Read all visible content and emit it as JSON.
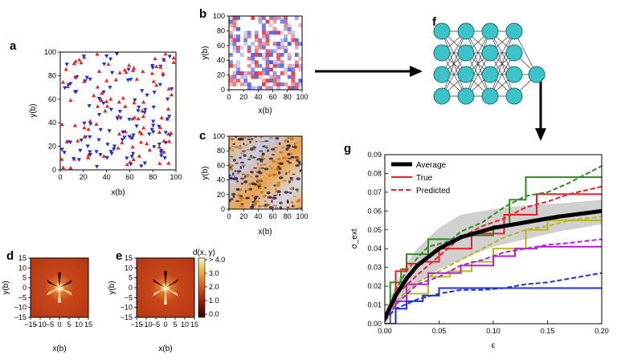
{
  "panels": {
    "a": {
      "label": "a",
      "xlabel": "x(b)",
      "ylabel": "y(b)",
      "xticks": [
        "0",
        "20",
        "40",
        "60",
        "80",
        "100"
      ],
      "yticks": [
        "0",
        "20",
        "40",
        "60",
        "80",
        "100"
      ]
    },
    "b": {
      "label": "b",
      "xlabel": "x(b)",
      "ylabel": "y(b)",
      "xticks": [
        "0",
        "20",
        "40",
        "60",
        "80",
        "100"
      ],
      "yticks": [
        "0",
        "20",
        "40",
        "60",
        "80",
        "100"
      ]
    },
    "c": {
      "label": "c",
      "xlabel": "x(b)",
      "ylabel": "y(b)",
      "xticks": [
        "0",
        "20",
        "40",
        "60",
        "80",
        "100"
      ],
      "yticks": [
        "0",
        "20",
        "40",
        "60",
        "80",
        "100"
      ]
    },
    "d": {
      "label": "d",
      "xlabel": "x(b)",
      "ylabel": "y(b)",
      "xticks": [
        "−15",
        "−10",
        "−5",
        "0",
        "5",
        "10",
        "15"
      ],
      "yticks": [
        "15",
        "10",
        "5",
        "0",
        "−5",
        "−10",
        "−15"
      ]
    },
    "e": {
      "label": "e",
      "xlabel": "x(b)",
      "ylabel": "y(b)",
      "xticks": [
        "−15",
        "−10",
        "−5",
        "0",
        "5",
        "10",
        "15"
      ],
      "yticks": [
        "15",
        "10",
        "5",
        "0",
        "−5",
        "−10",
        "−15"
      ]
    },
    "colorbar": {
      "title": "d(x, y)",
      "ticks": [
        "> 4.0",
        "3.0",
        "2.0",
        "1.0",
        "0.0"
      ]
    },
    "f": {
      "label": "f"
    },
    "g": {
      "label": "g"
    }
  },
  "chart_data": {
    "type": "line",
    "xlabel": "ε",
    "ylabel": "σ_ext",
    "xlim": [
      0,
      0.2
    ],
    "ylim": [
      0,
      0.09
    ],
    "xticks": [
      "0.00",
      "0.05",
      "0.10",
      "0.15",
      "0.20"
    ],
    "yticks": [
      "0.00",
      "0.01",
      "0.02",
      "0.03",
      "0.04",
      "0.05",
      "0.06",
      "0.07",
      "0.08",
      "0.09"
    ],
    "legend": {
      "placement": "top-left",
      "entries": [
        "Average",
        "True",
        "Predicted"
      ]
    },
    "average": {
      "name": "Average",
      "x": [
        0,
        0.01,
        0.02,
        0.03,
        0.05,
        0.07,
        0.1,
        0.13,
        0.16,
        0.2
      ],
      "y": [
        0.003,
        0.015,
        0.024,
        0.031,
        0.04,
        0.046,
        0.051,
        0.054,
        0.057,
        0.06
      ],
      "band_low": [
        0.001,
        0.009,
        0.016,
        0.022,
        0.029,
        0.034,
        0.041,
        0.045,
        0.049,
        0.053
      ],
      "band_high": [
        0.005,
        0.021,
        0.032,
        0.04,
        0.051,
        0.058,
        0.061,
        0.063,
        0.064,
        0.066
      ]
    },
    "series": [
      {
        "color": "#2e8b1e",
        "true": {
          "x": [
            0,
            0.005,
            0.015,
            0.02,
            0.04,
            0.07,
            0.1,
            0.115,
            0.13,
            0.2
          ],
          "y": [
            0,
            0.022,
            0.029,
            0.037,
            0.045,
            0.047,
            0.052,
            0.066,
            0.078,
            0.078
          ]
        },
        "pred": {
          "x": [
            0,
            0.01,
            0.02,
            0.03,
            0.04,
            0.06,
            0.07,
            0.09,
            0.11,
            0.13,
            0.15,
            0.17,
            0.19,
            0.2
          ],
          "y": [
            0.003,
            0.018,
            0.028,
            0.035,
            0.041,
            0.044,
            0.049,
            0.054,
            0.062,
            0.068,
            0.07,
            0.075,
            0.081,
            0.084
          ]
        }
      },
      {
        "color": "#e8202a",
        "true": {
          "x": [
            0,
            0.01,
            0.02,
            0.035,
            0.05,
            0.08,
            0.11,
            0.14,
            0.2
          ],
          "y": [
            0,
            0.028,
            0.032,
            0.033,
            0.04,
            0.048,
            0.058,
            0.069,
            0.069
          ]
        },
        "pred": {
          "x": [
            0,
            0.01,
            0.03,
            0.05,
            0.07,
            0.09,
            0.11,
            0.13,
            0.15,
            0.17,
            0.2
          ],
          "y": [
            0.002,
            0.015,
            0.026,
            0.036,
            0.046,
            0.052,
            0.056,
            0.062,
            0.065,
            0.069,
            0.073
          ]
        }
      },
      {
        "color": "#b8b81e",
        "true": {
          "x": [
            0,
            0.01,
            0.02,
            0.04,
            0.06,
            0.08,
            0.1,
            0.13,
            0.15,
            0.2
          ],
          "y": [
            0,
            0.008,
            0.016,
            0.025,
            0.028,
            0.033,
            0.04,
            0.05,
            0.055,
            0.055
          ]
        },
        "pred": {
          "x": [
            0,
            0.01,
            0.03,
            0.05,
            0.07,
            0.09,
            0.11,
            0.13,
            0.15,
            0.17,
            0.2
          ],
          "y": [
            0.002,
            0.012,
            0.022,
            0.028,
            0.034,
            0.04,
            0.046,
            0.05,
            0.052,
            0.055,
            0.057
          ]
        }
      },
      {
        "color": "#b026c8",
        "true": {
          "x": [
            0,
            0.01,
            0.02,
            0.04,
            0.07,
            0.1,
            0.12,
            0.14,
            0.2
          ],
          "y": [
            0,
            0.012,
            0.021,
            0.027,
            0.031,
            0.036,
            0.04,
            0.041,
            0.041
          ]
        },
        "pred": {
          "x": [
            0,
            0.01,
            0.03,
            0.05,
            0.07,
            0.09,
            0.11,
            0.13,
            0.15,
            0.17,
            0.2
          ],
          "y": [
            0.001,
            0.01,
            0.021,
            0.025,
            0.031,
            0.034,
            0.038,
            0.04,
            0.042,
            0.043,
            0.045
          ]
        }
      },
      {
        "color": "#1e2fe0",
        "true": {
          "x": [
            0,
            0.01,
            0.02,
            0.035,
            0.05,
            0.2
          ],
          "y": [
            0,
            0.008,
            0.012,
            0.015,
            0.019,
            0.019
          ]
        },
        "pred": {
          "x": [
            0,
            0.01,
            0.03,
            0.05,
            0.07,
            0.09,
            0.11,
            0.13,
            0.15,
            0.17,
            0.19,
            0.2
          ],
          "y": [
            0.002,
            0.008,
            0.013,
            0.016,
            0.018,
            0.018,
            0.019,
            0.021,
            0.022,
            0.024,
            0.026,
            0.027
          ]
        }
      }
    ]
  }
}
